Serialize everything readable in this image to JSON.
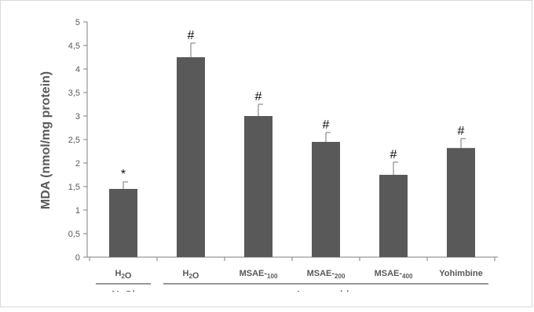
{
  "chart_data": {
    "type": "bar",
    "ylabel": "MDA (nmol/mg protein)",
    "ylim": [
      0,
      5
    ],
    "yticks": [
      "0",
      "0,5",
      "1",
      "1,5",
      "2",
      "2,5",
      "3",
      "3,5",
      "4",
      "4,5",
      "5"
    ],
    "categories": [
      "H2O",
      "H2O",
      "MSAE-100",
      "MSAE-200",
      "MSAE-400",
      "Yohimbine"
    ],
    "values": [
      1.45,
      4.25,
      3.0,
      2.45,
      1.75,
      2.32
    ],
    "errors": [
      0.15,
      0.3,
      0.25,
      0.2,
      0.27,
      0.2
    ],
    "significance": [
      "*",
      "#",
      "#",
      "#",
      "#",
      "#"
    ],
    "groups": [
      {
        "label": "NaCl"
      },
      {
        "label": "Loperamide"
      }
    ],
    "bar_color": "#595959",
    "grid": false
  }
}
